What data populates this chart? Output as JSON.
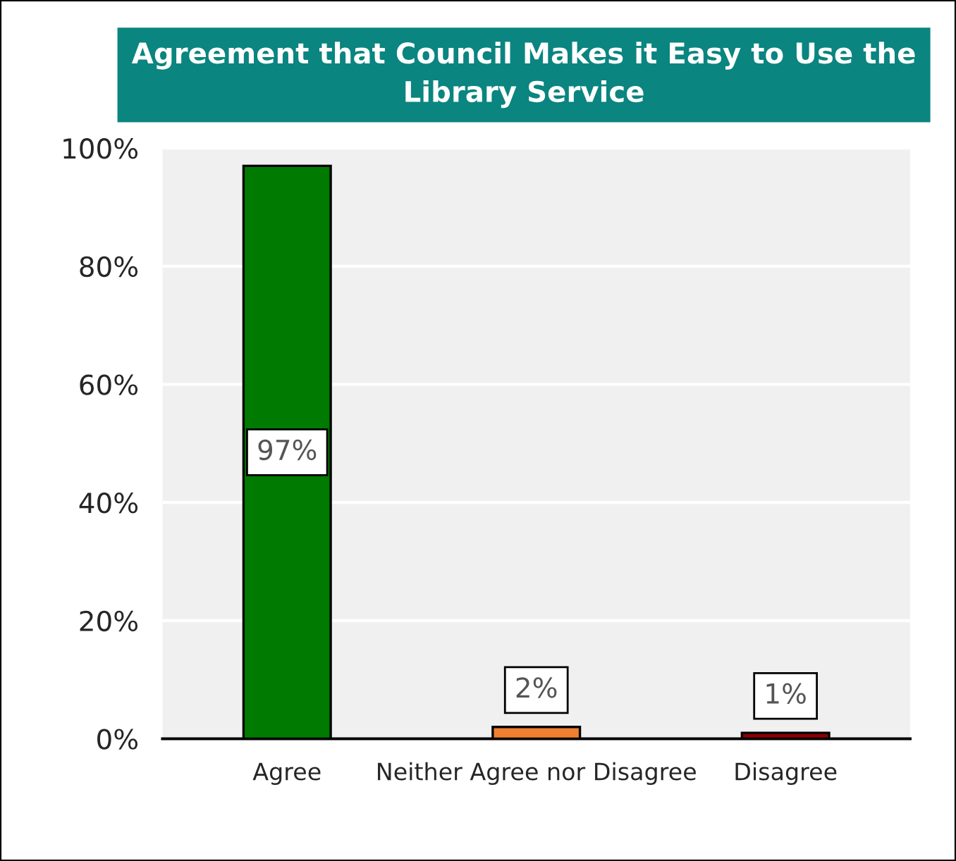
{
  "chart_data": {
    "type": "bar",
    "title": "Agreement that Council Makes it Easy to Use the Library Service",
    "categories": [
      "Agree",
      "Neither Agree nor Disagree",
      "Disagree"
    ],
    "values": [
      97,
      2,
      1
    ],
    "colors": [
      "#007a00",
      "#f08030",
      "#8b0000"
    ],
    "value_labels": [
      "97%",
      "2%",
      "1%"
    ],
    "ylim": [
      0,
      100
    ],
    "yticks": [
      {
        "value": 0,
        "label": "0%"
      },
      {
        "value": 20,
        "label": "20%"
      },
      {
        "value": 40,
        "label": "40%"
      },
      {
        "value": 60,
        "label": "60%"
      },
      {
        "value": 80,
        "label": "80%"
      },
      {
        "value": 100,
        "label": "100%"
      }
    ],
    "grid": "y"
  }
}
